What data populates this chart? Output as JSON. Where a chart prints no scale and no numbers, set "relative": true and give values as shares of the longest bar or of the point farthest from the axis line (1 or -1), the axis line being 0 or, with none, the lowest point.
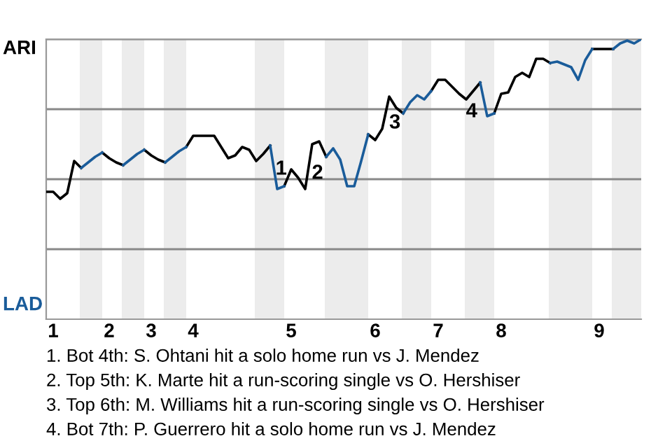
{
  "chart_data": {
    "type": "line",
    "relative": true,
    "categories": [
      null,
      "1",
      null,
      null,
      null,
      null,
      null,
      null,
      null,
      "2",
      null,
      null,
      null,
      null,
      null,
      "3",
      null,
      null,
      null,
      null,
      null,
      "4",
      null,
      null,
      null,
      null,
      null,
      null,
      null,
      null,
      null,
      null,
      null,
      null,
      null,
      "5",
      null,
      null,
      null,
      null,
      null,
      null,
      null,
      null,
      null,
      null,
      null,
      "6",
      null,
      null,
      null,
      null,
      null,
      null,
      null,
      null,
      "7",
      null,
      null,
      null,
      null,
      null,
      null,
      null,
      null,
      "8",
      null,
      null,
      null,
      null,
      null,
      null,
      null,
      null,
      null,
      null,
      null,
      null,
      null,
      "9",
      null,
      null,
      null,
      null,
      null,
      null
    ],
    "grid": "y",
    "legend": false,
    "marker": "none",
    "line_style": "solid",
    "series": [
      {
        "color": "#000000",
        "values": [
          0.455,
          0.455,
          0.43,
          0.45,
          0.565,
          0.54,
          null,
          null,
          0.595,
          0.575,
          0.56,
          0.55,
          null,
          null,
          0.605,
          0.585,
          0.57,
          0.56,
          null,
          null,
          0.615,
          0.655,
          0.655,
          0.655,
          0.655,
          0.615,
          0.575,
          0.585,
          0.615,
          0.605,
          0.565,
          0.59,
          0.62,
          null,
          0.475,
          0.535,
          0.505,
          0.465,
          0.625,
          0.635,
          0.58,
          null,
          null,
          null,
          null,
          null,
          0.66,
          0.64,
          0.68,
          0.795,
          0.755,
          0.735,
          null,
          null,
          null,
          0.815,
          0.855,
          0.855,
          0.83,
          0.805,
          0.785,
          0.815,
          0.845,
          null,
          0.735,
          0.805,
          0.81,
          0.865,
          0.88,
          0.865,
          0.93,
          0.93,
          0.915,
          null,
          null,
          null,
          null,
          null,
          0.965,
          0.965,
          0.965,
          0.965,
          null,
          null,
          null,
          null
        ]
      },
      {
        "color": "#1a5c9a",
        "values": [
          null,
          null,
          null,
          null,
          null,
          0.54,
          0.56,
          0.58,
          0.595,
          null,
          null,
          0.55,
          0.57,
          0.59,
          0.605,
          null,
          null,
          0.56,
          0.58,
          0.6,
          0.615,
          null,
          null,
          null,
          null,
          null,
          null,
          null,
          null,
          null,
          null,
          null,
          0.62,
          0.465,
          0.475,
          null,
          null,
          null,
          null,
          null,
          0.58,
          0.61,
          0.57,
          0.475,
          0.475,
          0.565,
          0.66,
          null,
          null,
          null,
          null,
          0.735,
          0.775,
          0.8,
          0.785,
          0.815,
          null,
          null,
          null,
          null,
          null,
          null,
          0.845,
          0.725,
          0.735,
          null,
          null,
          null,
          null,
          null,
          null,
          null,
          0.915,
          0.92,
          0.91,
          0.9,
          0.855,
          0.925,
          0.965,
          null,
          null,
          0.965,
          0.985,
          0.995,
          0.985,
          1
        ]
      }
    ],
    "annotations": [
      "ARI",
      "LAD",
      "1",
      "2",
      "3",
      "4",
      "1. Bot 4th: S. Ohtani hit a solo home run vs J. Mendez",
      "2. Top 5th: K. Marte hit a run-scoring single vs O. Hershiser",
      "3. Top 6th: M. Williams hit a run-scoring single vs O. Hershiser",
      "4. Bot 7th: P. Guerrero hit a solo home run vs J. Mendez"
    ]
  }
}
